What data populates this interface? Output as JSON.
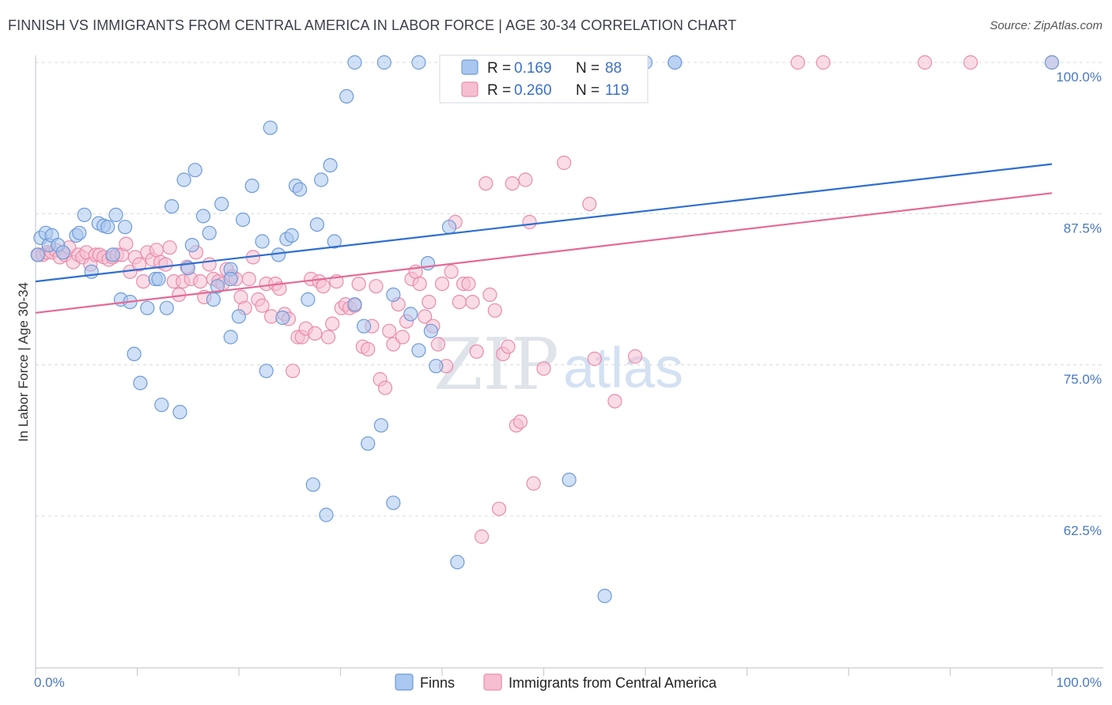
{
  "title": "FINNISH VS IMMIGRANTS FROM CENTRAL AMERICA IN LABOR FORCE | AGE 30-34 CORRELATION CHART",
  "source": "Source: ZipAtlas.com",
  "watermark": {
    "zip": "ZIP",
    "atlas": "atlas"
  },
  "legend_top": {
    "r_label": "R =",
    "n_label": "N =",
    "rows": [
      {
        "r": "0.169",
        "n": "88"
      },
      {
        "r": "0.260",
        "n": "119"
      }
    ]
  },
  "legend_bottom": [
    {
      "label": "Finns"
    },
    {
      "label": "Immigrants from Central America"
    }
  ],
  "colors": {
    "finns_fill": "#a9c7ef",
    "finns_stroke": "#6f9bd8",
    "finns_line": "#2f6fd0",
    "cam_fill": "#f6bfd1",
    "cam_stroke": "#e98cab",
    "cam_line": "#e46a96",
    "grid": "#d8dbe1",
    "tick_label": "#4a78c2"
  },
  "chart_data": {
    "type": "scatter",
    "title": "FINNISH VS IMMIGRANTS FROM CENTRAL AMERICA IN LABOR FORCE | AGE 30-34 CORRELATION CHART",
    "xlabel": "",
    "ylabel": "In Labor Force | Age 30-34",
    "xlim": [
      0,
      100
    ],
    "ylim": [
      50.5,
      101.5
    ],
    "x_tick_labels": [
      "0.0%",
      "100.0%"
    ],
    "y_ticks": [
      62.5,
      75.0,
      87.5,
      100.0
    ],
    "y_tick_labels": [
      "62.5%",
      "75.0%",
      "87.5%",
      "100.0%"
    ],
    "grid": true,
    "series": [
      {
        "name": "Finns",
        "r": 0.169,
        "n": 88,
        "trend": {
          "x": [
            0,
            100
          ],
          "y": [
            81.9,
            91.6
          ]
        },
        "points": [
          [
            0.2,
            84.1
          ],
          [
            0.5,
            85.5
          ],
          [
            1.0,
            85.9
          ],
          [
            1.3,
            84.9
          ],
          [
            1.6,
            85.7
          ],
          [
            2.2,
            84.9
          ],
          [
            2.7,
            84.3
          ],
          [
            4.0,
            85.7
          ],
          [
            4.3,
            85.9
          ],
          [
            4.8,
            87.4
          ],
          [
            5.5,
            82.7
          ],
          [
            6.2,
            86.7
          ],
          [
            6.7,
            86.5
          ],
          [
            7.1,
            86.4
          ],
          [
            7.6,
            84.1
          ],
          [
            7.9,
            87.4
          ],
          [
            8.4,
            80.4
          ],
          [
            8.8,
            86.4
          ],
          [
            9.3,
            80.2
          ],
          [
            9.7,
            75.9
          ],
          [
            10.3,
            73.5
          ],
          [
            11.0,
            79.7
          ],
          [
            11.8,
            82.1
          ],
          [
            12.1,
            82.1
          ],
          [
            12.4,
            71.7
          ],
          [
            12.9,
            79.7
          ],
          [
            13.4,
            88.1
          ],
          [
            14.2,
            71.1
          ],
          [
            14.6,
            90.3
          ],
          [
            15.0,
            83.0
          ],
          [
            15.4,
            84.9
          ],
          [
            15.7,
            91.1
          ],
          [
            16.5,
            87.3
          ],
          [
            17.1,
            85.9
          ],
          [
            17.5,
            80.4
          ],
          [
            17.9,
            81.5
          ],
          [
            18.3,
            88.3
          ],
          [
            19.2,
            82.9
          ],
          [
            19.2,
            82.1
          ],
          [
            19.2,
            77.3
          ],
          [
            20.0,
            79.0
          ],
          [
            20.4,
            87.0
          ],
          [
            21.3,
            89.8
          ],
          [
            22.3,
            85.2
          ],
          [
            22.7,
            74.5
          ],
          [
            23.1,
            94.6
          ],
          [
            23.9,
            84.1
          ],
          [
            24.3,
            78.9
          ],
          [
            24.7,
            85.4
          ],
          [
            25.2,
            85.7
          ],
          [
            25.6,
            89.8
          ],
          [
            26.0,
            89.5
          ],
          [
            26.8,
            80.4
          ],
          [
            27.3,
            65.1
          ],
          [
            27.7,
            86.6
          ],
          [
            28.1,
            90.3
          ],
          [
            28.6,
            62.6
          ],
          [
            29.0,
            91.5
          ],
          [
            29.4,
            85.2
          ],
          [
            30.6,
            97.2
          ],
          [
            31.4,
            80.0
          ],
          [
            31.4,
            100.0
          ],
          [
            32.3,
            78.2
          ],
          [
            32.7,
            68.5
          ],
          [
            34.0,
            70.0
          ],
          [
            34.3,
            100.0
          ],
          [
            35.2,
            63.6
          ],
          [
            35.2,
            80.8
          ],
          [
            36.9,
            79.2
          ],
          [
            37.7,
            76.2
          ],
          [
            37.7,
            100.0
          ],
          [
            38.6,
            83.4
          ],
          [
            38.9,
            77.8
          ],
          [
            39.4,
            74.9
          ],
          [
            40.7,
            86.4
          ],
          [
            41.5,
            58.7
          ],
          [
            41.9,
            100.0
          ],
          [
            42.4,
            100.0
          ],
          [
            52.5,
            65.5
          ],
          [
            54.6,
            100.0
          ],
          [
            56.0,
            55.9
          ],
          [
            56.7,
            100.0
          ],
          [
            58.4,
            100.0
          ],
          [
            58.4,
            100.0
          ],
          [
            60.0,
            100.0
          ],
          [
            62.9,
            100.0
          ],
          [
            62.9,
            100.0
          ],
          [
            100.0,
            100.0
          ]
        ]
      },
      {
        "name": "Immigrants from Central America",
        "r": 0.26,
        "n": 119,
        "trend": {
          "x": [
            0,
            100
          ],
          "y": [
            79.3,
            89.2
          ]
        },
        "points": [
          [
            0.3,
            84.1
          ],
          [
            0.7,
            84.1
          ],
          [
            1.1,
            84.3
          ],
          [
            1.6,
            84.3
          ],
          [
            2.0,
            84.5
          ],
          [
            2.4,
            83.9
          ],
          [
            2.9,
            84.1
          ],
          [
            3.3,
            84.7
          ],
          [
            3.7,
            83.5
          ],
          [
            4.2,
            84.1
          ],
          [
            4.6,
            83.9
          ],
          [
            5.0,
            84.3
          ],
          [
            5.4,
            83.3
          ],
          [
            5.9,
            84.1
          ],
          [
            6.3,
            84.1
          ],
          [
            6.7,
            83.9
          ],
          [
            7.2,
            83.7
          ],
          [
            7.6,
            83.9
          ],
          [
            8.0,
            84.1
          ],
          [
            8.5,
            84.1
          ],
          [
            8.9,
            85.0
          ],
          [
            9.3,
            82.7
          ],
          [
            9.8,
            83.9
          ],
          [
            10.2,
            83.3
          ],
          [
            10.6,
            81.9
          ],
          [
            11.0,
            84.3
          ],
          [
            11.5,
            83.7
          ],
          [
            11.9,
            84.5
          ],
          [
            12.3,
            83.5
          ],
          [
            12.8,
            83.3
          ],
          [
            13.2,
            84.7
          ],
          [
            13.6,
            81.9
          ],
          [
            14.1,
            80.8
          ],
          [
            14.5,
            81.9
          ],
          [
            14.9,
            83.1
          ],
          [
            15.3,
            82.1
          ],
          [
            15.8,
            84.3
          ],
          [
            16.2,
            81.9
          ],
          [
            16.6,
            80.6
          ],
          [
            17.1,
            83.3
          ],
          [
            17.5,
            82.1
          ],
          [
            18.0,
            81.9
          ],
          [
            18.4,
            81.7
          ],
          [
            18.8,
            82.9
          ],
          [
            19.3,
            82.3
          ],
          [
            19.7,
            82.1
          ],
          [
            20.2,
            80.6
          ],
          [
            20.6,
            79.7
          ],
          [
            21.0,
            82.1
          ],
          [
            21.4,
            83.9
          ],
          [
            21.9,
            80.4
          ],
          [
            22.3,
            79.9
          ],
          [
            22.7,
            81.7
          ],
          [
            23.2,
            79.0
          ],
          [
            23.6,
            81.7
          ],
          [
            24.0,
            81.3
          ],
          [
            24.5,
            79.2
          ],
          [
            24.9,
            78.8
          ],
          [
            25.3,
            74.5
          ],
          [
            25.8,
            77.3
          ],
          [
            26.2,
            77.3
          ],
          [
            26.6,
            78.0
          ],
          [
            27.1,
            82.1
          ],
          [
            27.5,
            77.6
          ],
          [
            27.9,
            81.9
          ],
          [
            28.3,
            81.5
          ],
          [
            28.8,
            77.3
          ],
          [
            29.2,
            78.4
          ],
          [
            29.6,
            81.9
          ],
          [
            30.1,
            79.7
          ],
          [
            30.5,
            80.0
          ],
          [
            30.9,
            79.7
          ],
          [
            31.4,
            79.9
          ],
          [
            31.8,
            81.7
          ],
          [
            32.2,
            76.5
          ],
          [
            32.7,
            76.3
          ],
          [
            33.1,
            78.2
          ],
          [
            33.5,
            81.5
          ],
          [
            33.9,
            73.8
          ],
          [
            34.4,
            73.1
          ],
          [
            34.8,
            77.8
          ],
          [
            35.2,
            76.7
          ],
          [
            35.7,
            80.0
          ],
          [
            36.1,
            77.3
          ],
          [
            36.5,
            78.6
          ],
          [
            37.0,
            82.1
          ],
          [
            37.4,
            82.7
          ],
          [
            37.8,
            81.7
          ],
          [
            38.3,
            79.0
          ],
          [
            38.7,
            80.2
          ],
          [
            39.1,
            78.2
          ],
          [
            39.6,
            76.7
          ],
          [
            40.0,
            81.7
          ],
          [
            40.4,
            74.9
          ],
          [
            40.9,
            82.7
          ],
          [
            41.3,
            86.8
          ],
          [
            41.7,
            80.2
          ],
          [
            42.1,
            81.7
          ],
          [
            42.6,
            81.7
          ],
          [
            43.0,
            80.2
          ],
          [
            43.4,
            76.1
          ],
          [
            43.9,
            60.8
          ],
          [
            44.3,
            90.0
          ],
          [
            44.7,
            80.8
          ],
          [
            45.2,
            79.5
          ],
          [
            45.6,
            63.1
          ],
          [
            46.0,
            75.9
          ],
          [
            46.5,
            76.5
          ],
          [
            46.9,
            90.0
          ],
          [
            47.3,
            70.0
          ],
          [
            47.7,
            70.3
          ],
          [
            48.2,
            90.3
          ],
          [
            48.6,
            86.8
          ],
          [
            49.0,
            65.2
          ],
          [
            50.0,
            74.7
          ],
          [
            52.0,
            91.7
          ],
          [
            54.5,
            88.3
          ],
          [
            55.0,
            75.5
          ],
          [
            57.0,
            72.0
          ],
          [
            59.0,
            75.7
          ],
          [
            75.0,
            100.0
          ],
          [
            77.5,
            100.0
          ],
          [
            87.5,
            100.0
          ],
          [
            92.0,
            100.0
          ],
          [
            100.0,
            100.0
          ]
        ]
      }
    ]
  }
}
